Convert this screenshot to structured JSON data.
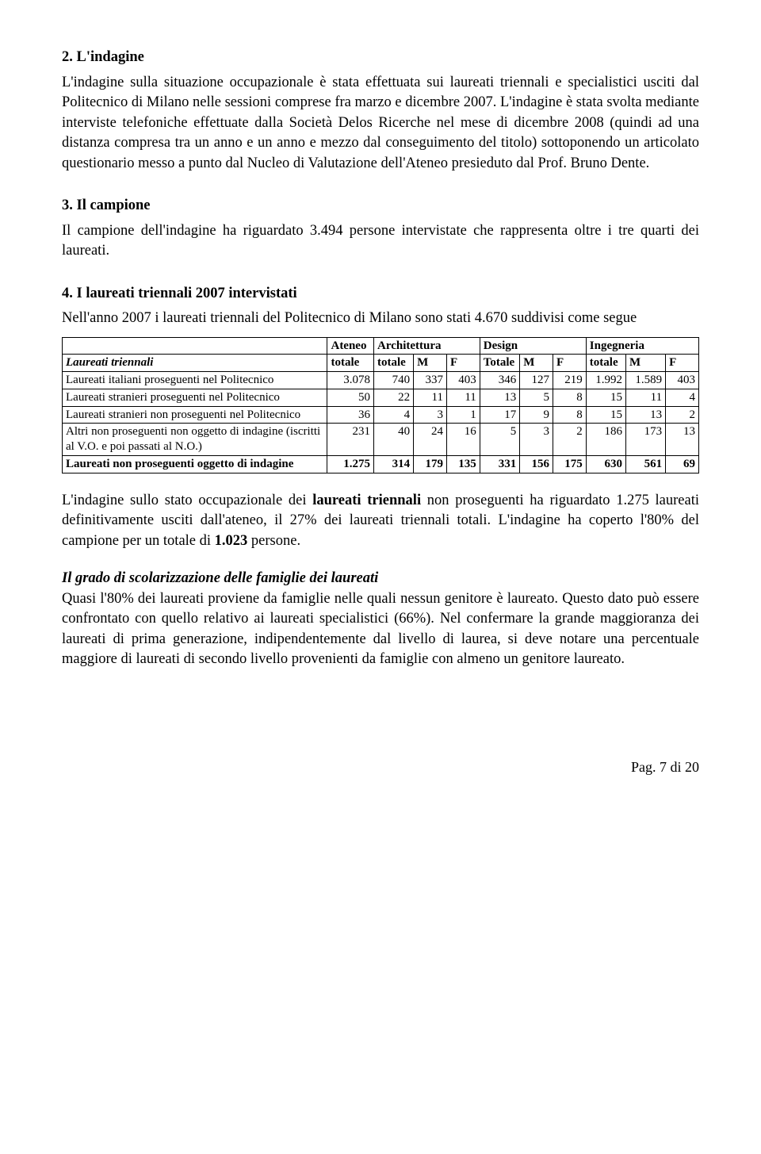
{
  "section2": {
    "heading": "2. L'indagine",
    "body": "L'indagine sulla situazione occupazionale è stata effettuata sui laureati triennali e specialistici usciti dal Politecnico di Milano nelle sessioni comprese fra marzo  e dicembre 2007. L'indagine è stata svolta mediante interviste telefoniche effettuate dalla Società Delos Ricerche nel mese di dicembre 2008 (quindi ad una distanza compresa tra un anno e un anno e mezzo dal conseguimento del titolo) sottoponendo un articolato questionario messo a punto dal Nucleo di Valutazione dell'Ateneo presieduto dal Prof. Bruno Dente."
  },
  "section3": {
    "heading": "3. Il campione",
    "body": "Il campione dell'indagine ha riguardato 3.494 persone intervistate che rappresenta oltre i tre quarti dei laureati."
  },
  "section4": {
    "heading": "4. I laureati triennali 2007 intervistati",
    "intro": "Nell'anno 2007 i laureati triennali del Politecnico di Milano sono stati 4.670 suddivisi come segue"
  },
  "table": {
    "row_label_heading": "Laureati triennali",
    "group_headers": [
      "Ateneo",
      "Architettura",
      "Design",
      "Ingegneria"
    ],
    "sub_headers": [
      "totale",
      "totale",
      "M",
      "F",
      "Totale",
      "M",
      "F",
      "totale",
      "M",
      "F"
    ],
    "rows": [
      {
        "label": "Laureati italiani proseguenti nel Politecnico",
        "values": [
          "3.078",
          "740",
          "337",
          "403",
          "346",
          "127",
          "219",
          "1.992",
          "1.589",
          "403"
        ],
        "bold": false
      },
      {
        "label": "Laureati stranieri proseguenti nel Politecnico",
        "values": [
          "50",
          "22",
          "11",
          "11",
          "13",
          "5",
          "8",
          "15",
          "11",
          "4"
        ],
        "bold": false
      },
      {
        "label": "Laureati stranieri non proseguenti nel Politecnico",
        "values": [
          "36",
          "4",
          "3",
          "1",
          "17",
          "9",
          "8",
          "15",
          "13",
          "2"
        ],
        "bold": false
      },
      {
        "label": "Altri non proseguenti non oggetto di indagine (iscritti al V.O. e poi passati al N.O.)",
        "values": [
          "231",
          "40",
          "24",
          "16",
          "5",
          "3",
          "2",
          "186",
          "173",
          "13"
        ],
        "bold": false
      },
      {
        "label": "Laureati non proseguenti oggetto di indagine",
        "values": [
          "1.275",
          "314",
          "179",
          "135",
          "331",
          "156",
          "175",
          "630",
          "561",
          "69"
        ],
        "bold": true
      }
    ]
  },
  "after_table": {
    "p1_a": "L'indagine sullo stato occupazionale dei ",
    "p1_b": "laureati triennali",
    "p1_c": " non proseguenti ha riguardato 1.275 laureati definitivamente usciti dall'ateneo, il 27% dei laureati triennali totali. L'indagine ha coperto l'80% del campione per un totale di ",
    "p1_d": "1.023",
    "p1_e": " persone.",
    "subhead": "Il grado di scolarizzazione delle famiglie dei laureati",
    "p2": "Quasi l'80% dei laureati proviene da famiglie nelle quali nessun genitore è laureato. Questo dato può essere confrontato con quello relativo ai laureati specialistici (66%).  Nel confermare la grande maggioranza dei laureati di prima generazione, indipendentemente dal livello di laurea, si deve notare una percentuale maggiore di laureati di secondo livello provenienti da famiglie con almeno un genitore laureato."
  },
  "footer": "Pag. 7 di 20"
}
